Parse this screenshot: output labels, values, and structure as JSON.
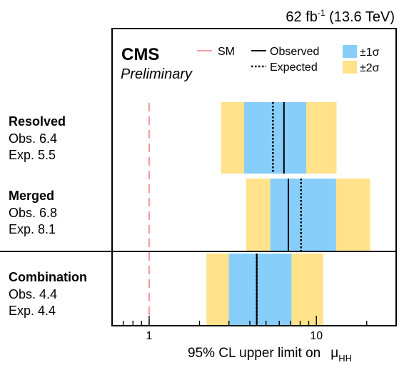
{
  "chart_data": {
    "type": "limit-bands",
    "lumi_label": "62 fb",
    "lumi_exponent": "-1",
    "lumi_suffix": " (13.6 TeV)",
    "experiment": "CMS",
    "status": "Preliminary",
    "x_axis": {
      "scale": "log",
      "xlim": [
        0.6,
        30
      ],
      "major_ticks": [
        1,
        10
      ],
      "major_tick_labels": [
        "1",
        "10"
      ],
      "title_main": "95% CL upper limit on",
      "title_symbol": "μ",
      "title_subscript": "HH"
    },
    "legend": [
      {
        "key": "sm",
        "label": "SM",
        "color": "#f08080",
        "style": "dashed"
      },
      {
        "key": "observed",
        "label": "Observed",
        "color": "#000000",
        "style": "solid"
      },
      {
        "key": "expected",
        "label": "Expected",
        "color": "#000000",
        "style": "dotted"
      },
      {
        "key": "one_sigma",
        "label": "±1σ",
        "color": "#87cefa",
        "style": "fill"
      },
      {
        "key": "two_sigma",
        "label": "±2σ",
        "color": "#ffe28a",
        "style": "fill"
      }
    ],
    "sm_value": 1,
    "categories": [
      {
        "name": "Resolved",
        "obs_text": "Obs. 6.4",
        "exp_text": "Exp. 5.5",
        "observed": 6.4,
        "expected": 5.5,
        "band_1sigma": [
          3.7,
          8.7
        ],
        "band_2sigma": [
          2.7,
          13.2
        ]
      },
      {
        "name": "Merged",
        "obs_text": "Obs. 6.8",
        "exp_text": "Exp. 8.1",
        "observed": 6.8,
        "expected": 8.1,
        "band_1sigma": [
          5.3,
          13.1
        ],
        "band_2sigma": [
          3.8,
          21.0
        ]
      },
      {
        "name": "Combination",
        "obs_text": "Obs. 4.4",
        "exp_text": "Exp. 4.4",
        "observed": 4.4,
        "expected": 4.4,
        "band_1sigma": [
          3.0,
          7.1
        ],
        "band_2sigma": [
          2.2,
          11.0
        ]
      }
    ]
  }
}
